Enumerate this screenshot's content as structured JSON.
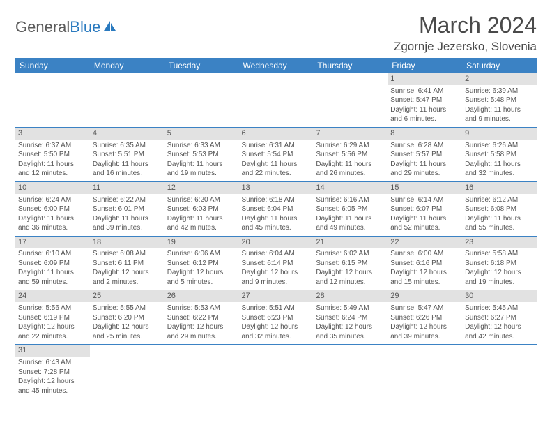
{
  "brand": {
    "part1": "General",
    "part2": "Blue"
  },
  "title": {
    "month": "March 2024",
    "location": "Zgornje Jezersko, Slovenia"
  },
  "colors": {
    "header_bg": "#3b82c4",
    "header_text": "#ffffff",
    "daynum_bg": "#e2e2e2",
    "row_border": "#3b82c4",
    "text": "#555555",
    "brand_blue": "#2a7abf"
  },
  "weekdays": [
    "Sunday",
    "Monday",
    "Tuesday",
    "Wednesday",
    "Thursday",
    "Friday",
    "Saturday"
  ],
  "days": {
    "1": {
      "sunrise": "Sunrise: 6:41 AM",
      "sunset": "Sunset: 5:47 PM",
      "daylight1": "Daylight: 11 hours",
      "daylight2": "and 6 minutes."
    },
    "2": {
      "sunrise": "Sunrise: 6:39 AM",
      "sunset": "Sunset: 5:48 PM",
      "daylight1": "Daylight: 11 hours",
      "daylight2": "and 9 minutes."
    },
    "3": {
      "sunrise": "Sunrise: 6:37 AM",
      "sunset": "Sunset: 5:50 PM",
      "daylight1": "Daylight: 11 hours",
      "daylight2": "and 12 minutes."
    },
    "4": {
      "sunrise": "Sunrise: 6:35 AM",
      "sunset": "Sunset: 5:51 PM",
      "daylight1": "Daylight: 11 hours",
      "daylight2": "and 16 minutes."
    },
    "5": {
      "sunrise": "Sunrise: 6:33 AM",
      "sunset": "Sunset: 5:53 PM",
      "daylight1": "Daylight: 11 hours",
      "daylight2": "and 19 minutes."
    },
    "6": {
      "sunrise": "Sunrise: 6:31 AM",
      "sunset": "Sunset: 5:54 PM",
      "daylight1": "Daylight: 11 hours",
      "daylight2": "and 22 minutes."
    },
    "7": {
      "sunrise": "Sunrise: 6:29 AM",
      "sunset": "Sunset: 5:56 PM",
      "daylight1": "Daylight: 11 hours",
      "daylight2": "and 26 minutes."
    },
    "8": {
      "sunrise": "Sunrise: 6:28 AM",
      "sunset": "Sunset: 5:57 PM",
      "daylight1": "Daylight: 11 hours",
      "daylight2": "and 29 minutes."
    },
    "9": {
      "sunrise": "Sunrise: 6:26 AM",
      "sunset": "Sunset: 5:58 PM",
      "daylight1": "Daylight: 11 hours",
      "daylight2": "and 32 minutes."
    },
    "10": {
      "sunrise": "Sunrise: 6:24 AM",
      "sunset": "Sunset: 6:00 PM",
      "daylight1": "Daylight: 11 hours",
      "daylight2": "and 36 minutes."
    },
    "11": {
      "sunrise": "Sunrise: 6:22 AM",
      "sunset": "Sunset: 6:01 PM",
      "daylight1": "Daylight: 11 hours",
      "daylight2": "and 39 minutes."
    },
    "12": {
      "sunrise": "Sunrise: 6:20 AM",
      "sunset": "Sunset: 6:03 PM",
      "daylight1": "Daylight: 11 hours",
      "daylight2": "and 42 minutes."
    },
    "13": {
      "sunrise": "Sunrise: 6:18 AM",
      "sunset": "Sunset: 6:04 PM",
      "daylight1": "Daylight: 11 hours",
      "daylight2": "and 45 minutes."
    },
    "14": {
      "sunrise": "Sunrise: 6:16 AM",
      "sunset": "Sunset: 6:05 PM",
      "daylight1": "Daylight: 11 hours",
      "daylight2": "and 49 minutes."
    },
    "15": {
      "sunrise": "Sunrise: 6:14 AM",
      "sunset": "Sunset: 6:07 PM",
      "daylight1": "Daylight: 11 hours",
      "daylight2": "and 52 minutes."
    },
    "16": {
      "sunrise": "Sunrise: 6:12 AM",
      "sunset": "Sunset: 6:08 PM",
      "daylight1": "Daylight: 11 hours",
      "daylight2": "and 55 minutes."
    },
    "17": {
      "sunrise": "Sunrise: 6:10 AM",
      "sunset": "Sunset: 6:09 PM",
      "daylight1": "Daylight: 11 hours",
      "daylight2": "and 59 minutes."
    },
    "18": {
      "sunrise": "Sunrise: 6:08 AM",
      "sunset": "Sunset: 6:11 PM",
      "daylight1": "Daylight: 12 hours",
      "daylight2": "and 2 minutes."
    },
    "19": {
      "sunrise": "Sunrise: 6:06 AM",
      "sunset": "Sunset: 6:12 PM",
      "daylight1": "Daylight: 12 hours",
      "daylight2": "and 5 minutes."
    },
    "20": {
      "sunrise": "Sunrise: 6:04 AM",
      "sunset": "Sunset: 6:14 PM",
      "daylight1": "Daylight: 12 hours",
      "daylight2": "and 9 minutes."
    },
    "21": {
      "sunrise": "Sunrise: 6:02 AM",
      "sunset": "Sunset: 6:15 PM",
      "daylight1": "Daylight: 12 hours",
      "daylight2": "and 12 minutes."
    },
    "22": {
      "sunrise": "Sunrise: 6:00 AM",
      "sunset": "Sunset: 6:16 PM",
      "daylight1": "Daylight: 12 hours",
      "daylight2": "and 15 minutes."
    },
    "23": {
      "sunrise": "Sunrise: 5:58 AM",
      "sunset": "Sunset: 6:18 PM",
      "daylight1": "Daylight: 12 hours",
      "daylight2": "and 19 minutes."
    },
    "24": {
      "sunrise": "Sunrise: 5:56 AM",
      "sunset": "Sunset: 6:19 PM",
      "daylight1": "Daylight: 12 hours",
      "daylight2": "and 22 minutes."
    },
    "25": {
      "sunrise": "Sunrise: 5:55 AM",
      "sunset": "Sunset: 6:20 PM",
      "daylight1": "Daylight: 12 hours",
      "daylight2": "and 25 minutes."
    },
    "26": {
      "sunrise": "Sunrise: 5:53 AM",
      "sunset": "Sunset: 6:22 PM",
      "daylight1": "Daylight: 12 hours",
      "daylight2": "and 29 minutes."
    },
    "27": {
      "sunrise": "Sunrise: 5:51 AM",
      "sunset": "Sunset: 6:23 PM",
      "daylight1": "Daylight: 12 hours",
      "daylight2": "and 32 minutes."
    },
    "28": {
      "sunrise": "Sunrise: 5:49 AM",
      "sunset": "Sunset: 6:24 PM",
      "daylight1": "Daylight: 12 hours",
      "daylight2": "and 35 minutes."
    },
    "29": {
      "sunrise": "Sunrise: 5:47 AM",
      "sunset": "Sunset: 6:26 PM",
      "daylight1": "Daylight: 12 hours",
      "daylight2": "and 39 minutes."
    },
    "30": {
      "sunrise": "Sunrise: 5:45 AM",
      "sunset": "Sunset: 6:27 PM",
      "daylight1": "Daylight: 12 hours",
      "daylight2": "and 42 minutes."
    },
    "31": {
      "sunrise": "Sunrise: 6:43 AM",
      "sunset": "Sunset: 7:28 PM",
      "daylight1": "Daylight: 12 hours",
      "daylight2": "and 45 minutes."
    }
  },
  "grid": [
    [
      null,
      null,
      null,
      null,
      null,
      "1",
      "2"
    ],
    [
      "3",
      "4",
      "5",
      "6",
      "7",
      "8",
      "9"
    ],
    [
      "10",
      "11",
      "12",
      "13",
      "14",
      "15",
      "16"
    ],
    [
      "17",
      "18",
      "19",
      "20",
      "21",
      "22",
      "23"
    ],
    [
      "24",
      "25",
      "26",
      "27",
      "28",
      "29",
      "30"
    ],
    [
      "31",
      null,
      null,
      null,
      null,
      null,
      null
    ]
  ]
}
